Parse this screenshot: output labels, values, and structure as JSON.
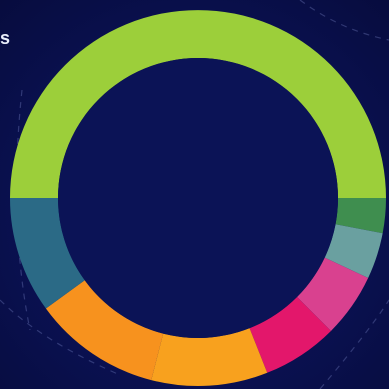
{
  "page": {
    "edge_text": "s"
  },
  "chart_data": {
    "type": "pie",
    "donut": true,
    "title": "",
    "legend": "none",
    "start_angle_deg": 180,
    "direction": "clockwise",
    "slices": [
      {
        "label": "",
        "value": 50.0,
        "color": "#9ccf3a"
      },
      {
        "label": "",
        "value": 3.0,
        "color": "#3f8e4f"
      },
      {
        "label": "",
        "value": 4.0,
        "color": "#6aa0a0"
      },
      {
        "label": "",
        "value": 5.5,
        "color": "#d9418f"
      },
      {
        "label": "",
        "value": 6.5,
        "color": "#e3176b"
      },
      {
        "label": "",
        "value": 10.0,
        "color": "#f8a11e"
      },
      {
        "label": "",
        "value": 11.0,
        "color": "#f7921e"
      },
      {
        "label": "",
        "value": 10.0,
        "color": "#2b6a86"
      }
    ]
  }
}
